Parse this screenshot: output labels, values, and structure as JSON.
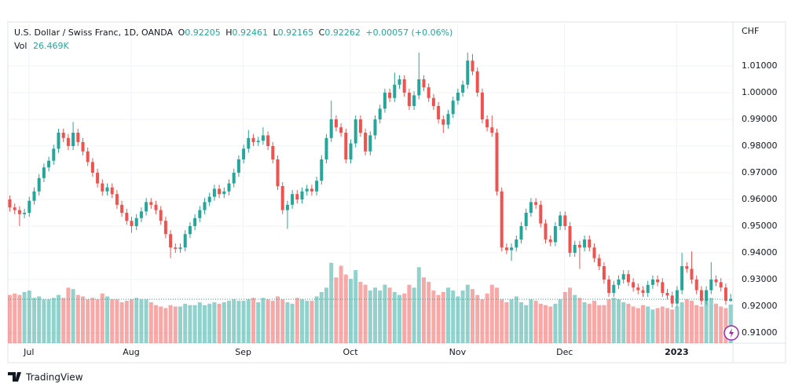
{
  "chart_data": {
    "type": "candlestick",
    "title": "U.S. Dollar / Swiss Franc, 1D, OANDA",
    "ohlc_letters": [
      "O",
      "H",
      "L",
      "C"
    ],
    "change_label": "+0.00057 (+0.06%)",
    "volume_title": "Vol",
    "volume_last_label": "26.469K",
    "currency": "CHF",
    "brand": "TradingView",
    "up_color": "#26a69a",
    "down_color": "#ef5350",
    "grid": true,
    "ylim": [
      0.90618,
      1.02647
    ],
    "yticks": [
      {
        "value": 0.91,
        "label": "0.91000"
      },
      {
        "value": 0.92,
        "label": "0.92000"
      },
      {
        "value": 0.93,
        "label": "0.93000"
      },
      {
        "value": 0.94,
        "label": "0.94000"
      },
      {
        "value": 0.95,
        "label": "0.95000"
      },
      {
        "value": 0.96,
        "label": "0.96000"
      },
      {
        "value": 0.97,
        "label": "0.97000"
      },
      {
        "value": 0.98,
        "label": "0.98000"
      },
      {
        "value": 0.99,
        "label": "0.99000"
      },
      {
        "value": 1.0,
        "label": "1.00000"
      },
      {
        "value": 1.01,
        "label": "1.01000"
      }
    ],
    "volume_lim": [
      0,
      220000
    ],
    "categories": [
      null,
      null,
      null,
      null,
      "Jul",
      null,
      null,
      null,
      null,
      null,
      null,
      null,
      null,
      null,
      null,
      null,
      null,
      null,
      null,
      null,
      null,
      null,
      null,
      null,
      null,
      "Aug",
      null,
      null,
      null,
      null,
      null,
      null,
      null,
      null,
      null,
      null,
      null,
      null,
      null,
      null,
      null,
      null,
      null,
      null,
      null,
      null,
      null,
      null,
      "Sep",
      null,
      null,
      null,
      null,
      null,
      null,
      null,
      null,
      null,
      null,
      null,
      null,
      null,
      null,
      null,
      null,
      null,
      null,
      null,
      null,
      null,
      "Oct",
      null,
      null,
      null,
      null,
      null,
      null,
      null,
      null,
      null,
      null,
      null,
      null,
      null,
      null,
      null,
      null,
      null,
      null,
      null,
      null,
      null,
      "Nov",
      null,
      null,
      null,
      null,
      null,
      null,
      null,
      null,
      null,
      null,
      null,
      null,
      null,
      null,
      null,
      null,
      null,
      null,
      null,
      null,
      null,
      "Dec",
      null,
      null,
      null,
      null,
      null,
      null,
      null,
      null,
      null,
      null,
      null,
      null,
      null,
      null,
      null,
      null,
      null,
      null,
      null,
      null,
      null,
      null,
      "2023",
      null,
      null,
      null,
      null,
      null,
      null,
      null,
      null,
      null,
      null,
      null
    ],
    "open": [
      0.96,
      0.957,
      0.956,
      0.9545,
      0.955,
      0.9595,
      0.963,
      0.968,
      0.972,
      0.9745,
      0.979,
      0.985,
      0.983,
      0.98,
      0.985,
      0.9815,
      0.978,
      0.974,
      0.97,
      0.966,
      0.963,
      0.9645,
      0.962,
      0.958,
      0.955,
      0.952,
      0.95,
      0.953,
      0.9555,
      0.959,
      0.958,
      0.956,
      0.952,
      0.947,
      0.942,
      0.9415,
      0.942,
      0.947,
      0.95,
      0.953,
      0.956,
      0.959,
      0.961,
      0.964,
      0.962,
      0.963,
      0.966,
      0.97,
      0.975,
      0.979,
      0.983,
      0.9815,
      0.982,
      0.984,
      0.98,
      0.975,
      0.965,
      0.956,
      0.958,
      0.962,
      0.96,
      0.963,
      0.964,
      0.963,
      0.967,
      0.975,
      0.983,
      0.99,
      0.987,
      0.985,
      0.975,
      0.981,
      0.99,
      0.985,
      0.978,
      0.984,
      0.99,
      0.994,
      1.0,
      0.998,
      1.003,
      1.005,
      1.0,
      0.995,
      0.999,
      1.005,
      1.002,
      0.998,
      0.995,
      0.99,
      0.988,
      0.992,
      0.997,
      1.0,
      1.003,
      1.012,
      1.008,
      1.0,
      0.99,
      0.987,
      0.985,
      0.963,
      0.942,
      0.941,
      0.942,
      0.945,
      0.95,
      0.955,
      0.959,
      0.958,
      0.951,
      0.945,
      0.944,
      0.95,
      0.954,
      0.95,
      0.94,
      0.943,
      0.942,
      0.945,
      0.942,
      0.938,
      0.935,
      0.93,
      0.925,
      0.928,
      0.93,
      0.932,
      0.929,
      0.927,
      0.926,
      0.925,
      0.928,
      0.93,
      0.929,
      0.925,
      0.924,
      0.921,
      0.926,
      0.935,
      0.934,
      0.93,
      0.926,
      0.922,
      0.926,
      0.93,
      0.929,
      0.927,
      0.92205
    ],
    "high": [
      0.9615,
      0.9585,
      0.9575,
      0.9565,
      0.961,
      0.9645,
      0.9695,
      0.9735,
      0.976,
      0.9805,
      0.9865,
      0.9865,
      0.9845,
      0.989,
      0.9865,
      0.983,
      0.9795,
      0.9755,
      0.9715,
      0.9675,
      0.966,
      0.966,
      0.9635,
      0.9595,
      0.9565,
      0.9535,
      0.9545,
      0.957,
      0.9605,
      0.9605,
      0.9595,
      0.9575,
      0.9535,
      0.9485,
      0.9435,
      0.9435,
      0.9485,
      0.9515,
      0.9545,
      0.9575,
      0.9605,
      0.9625,
      0.9655,
      0.9655,
      0.9645,
      0.9675,
      0.9715,
      0.9765,
      0.9805,
      0.986,
      0.9845,
      0.9835,
      0.987,
      0.9855,
      0.9815,
      0.9765,
      0.9665,
      0.9595,
      0.9635,
      0.9635,
      0.9645,
      0.9655,
      0.9655,
      0.9685,
      0.9765,
      0.9845,
      0.997,
      0.9915,
      0.9885,
      0.9865,
      0.9825,
      0.9915,
      0.9915,
      0.9865,
      0.9855,
      0.9915,
      0.9955,
      1.0015,
      1.0015,
      1.0075,
      1.0065,
      1.0065,
      1.0015,
      1.0005,
      1.015,
      1.0065,
      1.0035,
      0.9995,
      0.9965,
      0.9915,
      0.9935,
      0.9985,
      1.0015,
      1.0045,
      1.015,
      1.0145,
      1.0095,
      1.0015,
      0.9915,
      0.9915,
      0.9865,
      0.9645,
      0.9435,
      0.9435,
      0.9465,
      0.9515,
      0.9565,
      0.9605,
      0.9605,
      0.9595,
      0.9525,
      0.9465,
      0.9515,
      0.9555,
      0.9555,
      0.9515,
      0.9445,
      0.9445,
      0.9465,
      0.9465,
      0.9435,
      0.9395,
      0.9365,
      0.9315,
      0.9295,
      0.9315,
      0.9335,
      0.9335,
      0.9305,
      0.9285,
      0.9275,
      0.9295,
      0.9315,
      0.9315,
      0.9305,
      0.9265,
      0.9255,
      0.9275,
      0.94,
      0.9365,
      0.9405,
      0.9315,
      0.9275,
      0.9275,
      0.9365,
      0.9315,
      0.9305,
      0.9285,
      0.92461
    ],
    "low": [
      0.9555,
      0.9545,
      0.95,
      0.953,
      0.9535,
      0.958,
      0.9615,
      0.9665,
      0.9705,
      0.973,
      0.9775,
      0.9815,
      0.9785,
      0.9785,
      0.98,
      0.9765,
      0.9725,
      0.9685,
      0.9645,
      0.9615,
      0.9615,
      0.9605,
      0.9565,
      0.9535,
      0.9505,
      0.9475,
      0.9485,
      0.9515,
      0.954,
      0.9565,
      0.9545,
      0.9505,
      0.9455,
      0.938,
      0.94,
      0.94,
      0.9405,
      0.9455,
      0.9485,
      0.9515,
      0.9545,
      0.9575,
      0.9595,
      0.9605,
      0.9605,
      0.9615,
      0.9645,
      0.9685,
      0.9735,
      0.9775,
      0.98,
      0.98,
      0.9805,
      0.9785,
      0.9735,
      0.9635,
      0.9545,
      0.949,
      0.9565,
      0.9585,
      0.9585,
      0.9615,
      0.9615,
      0.9615,
      0.9655,
      0.9735,
      0.9815,
      0.9855,
      0.9835,
      0.9735,
      0.9735,
      0.9795,
      0.9835,
      0.9765,
      0.9765,
      0.9825,
      0.9885,
      0.9925,
      0.9965,
      0.9965,
      1.0015,
      0.9985,
      0.9935,
      0.9935,
      0.9975,
      1.0005,
      0.9965,
      0.9935,
      0.9885,
      0.985,
      0.9865,
      0.9905,
      0.9955,
      0.9985,
      1.0015,
      1.0065,
      0.9985,
      0.9885,
      0.9855,
      0.9835,
      0.9615,
      0.9405,
      0.9395,
      0.937,
      0.9405,
      0.9435,
      0.9485,
      0.9535,
      0.9565,
      0.9495,
      0.9435,
      0.9425,
      0.9425,
      0.9485,
      0.9485,
      0.9385,
      0.9385,
      0.934,
      0.9405,
      0.9405,
      0.9365,
      0.9335,
      0.9285,
      0.9235,
      0.9235,
      0.9265,
      0.9285,
      0.9275,
      0.9255,
      0.9245,
      0.9235,
      0.9235,
      0.9265,
      0.9275,
      0.9235,
      0.9225,
      0.9195,
      0.9195,
      0.9245,
      0.9325,
      0.9285,
      0.9245,
      0.9205,
      0.9205,
      0.9245,
      0.9275,
      0.9255,
      0.92055,
      0.92165
    ],
    "close": [
      0.957,
      0.956,
      0.9545,
      0.955,
      0.9595,
      0.963,
      0.968,
      0.972,
      0.9745,
      0.979,
      0.985,
      0.983,
      0.98,
      0.985,
      0.9815,
      0.978,
      0.974,
      0.97,
      0.966,
      0.963,
      0.9645,
      0.962,
      0.958,
      0.955,
      0.952,
      0.95,
      0.953,
      0.9555,
      0.959,
      0.958,
      0.956,
      0.952,
      0.947,
      0.942,
      0.9415,
      0.942,
      0.947,
      0.95,
      0.953,
      0.956,
      0.959,
      0.961,
      0.964,
      0.962,
      0.963,
      0.966,
      0.97,
      0.975,
      0.979,
      0.983,
      0.9815,
      0.982,
      0.984,
      0.98,
      0.975,
      0.965,
      0.956,
      0.958,
      0.962,
      0.96,
      0.963,
      0.964,
      0.963,
      0.967,
      0.975,
      0.983,
      0.99,
      0.987,
      0.985,
      0.975,
      0.981,
      0.99,
      0.985,
      0.978,
      0.984,
      0.99,
      0.994,
      1.0,
      0.998,
      1.003,
      1.005,
      1.0,
      0.995,
      0.999,
      1.005,
      1.002,
      0.998,
      0.995,
      0.99,
      0.988,
      0.992,
      0.997,
      1.0,
      1.003,
      1.012,
      1.008,
      1.0,
      0.99,
      0.987,
      0.985,
      0.963,
      0.942,
      0.941,
      0.942,
      0.945,
      0.95,
      0.955,
      0.959,
      0.958,
      0.951,
      0.945,
      0.944,
      0.95,
      0.954,
      0.95,
      0.94,
      0.943,
      0.942,
      0.945,
      0.942,
      0.938,
      0.935,
      0.93,
      0.925,
      0.928,
      0.93,
      0.932,
      0.929,
      0.927,
      0.926,
      0.925,
      0.928,
      0.93,
      0.929,
      0.925,
      0.924,
      0.921,
      0.926,
      0.935,
      0.934,
      0.93,
      0.926,
      0.922,
      0.926,
      0.93,
      0.929,
      0.927,
      0.92205,
      0.92262
    ],
    "volume": [
      33000,
      34000,
      33000,
      35000,
      36000,
      31000,
      32000,
      30000,
      30000,
      31000,
      33000,
      31000,
      38000,
      37000,
      33000,
      32000,
      30000,
      31000,
      30000,
      34000,
      32000,
      30000,
      30000,
      28000,
      29000,
      30000,
      31000,
      30000,
      30000,
      28000,
      26000,
      25000,
      24000,
      26000,
      25000,
      25000,
      27000,
      26000,
      26000,
      28000,
      26000,
      27000,
      28000,
      27000,
      28000,
      29000,
      30000,
      29000,
      29000,
      30000,
      31000,
      28000,
      31000,
      30000,
      29000,
      32000,
      30000,
      28000,
      27000,
      31000,
      30000,
      29000,
      29000,
      32000,
      35000,
      38000,
      55000,
      45000,
      53000,
      47000,
      44000,
      50000,
      42000,
      40000,
      36000,
      38000,
      36000,
      40000,
      38000,
      35000,
      33000,
      34000,
      40000,
      38000,
      52000,
      45000,
      42000,
      36000,
      33000,
      35000,
      38000,
      36000,
      32000,
      36000,
      40000,
      37000,
      33000,
      30000,
      34000,
      40000,
      38000,
      30000,
      28000,
      30000,
      32000,
      28000,
      26000,
      30000,
      29000,
      27000,
      26000,
      25000,
      27000,
      30000,
      35000,
      38000,
      33000,
      31000,
      28000,
      27000,
      29000,
      26000,
      26000,
      30000,
      31000,
      30000,
      28000,
      27000,
      25000,
      24000,
      26000,
      25000,
      23000,
      24000,
      25000,
      24000,
      23000,
      25000,
      28000,
      30000,
      29000,
      26000,
      25000,
      29000,
      31000,
      27000,
      25000,
      24000,
      26469
    ]
  }
}
